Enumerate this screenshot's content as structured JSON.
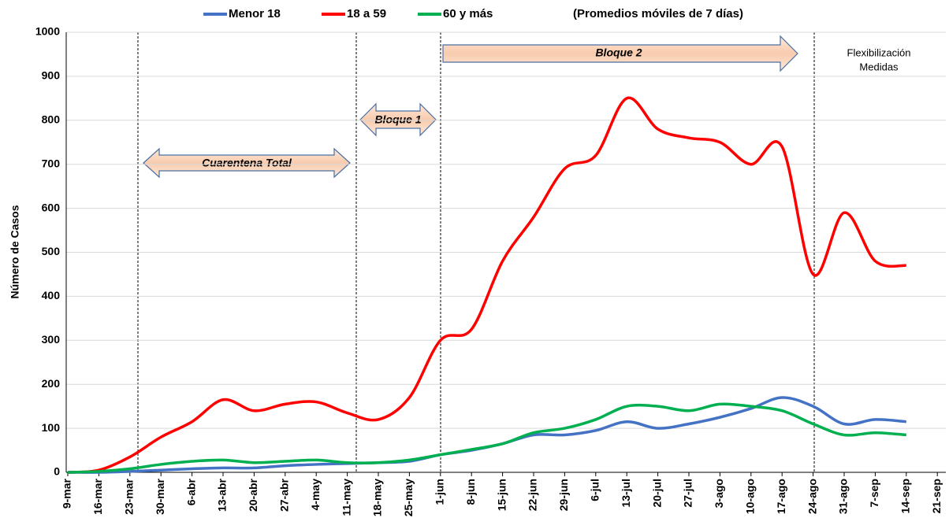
{
  "chart_data": {
    "type": "line",
    "subtitle": "(Promedios móviles de 7 días)",
    "y_label": "Número de Casos",
    "annotations": {
      "quarantine": "Cuarentena Total",
      "block1": "Bloque 1",
      "block2": "Bloque 2",
      "flex": [
        "Flexibilización",
        "Medidas"
      ]
    },
    "categories": [
      "9-mar",
      "16-mar",
      "23-mar",
      "30-mar",
      "6-abr",
      "13-abr",
      "20-abr",
      "27-abr",
      "4-may",
      "11-may",
      "18-may",
      "25-may",
      "1-jun",
      "8-jun",
      "15-jun",
      "22-jun",
      "29-jun",
      "6-jul",
      "13-jul",
      "20-jul",
      "27-jul",
      "3-ago",
      "10-ago",
      "17-ago",
      "24-ago",
      "31-ago",
      "7-sep",
      "14-sep",
      "21-sep"
    ],
    "series": [
      {
        "name": "Menor 18",
        "color": "#4472c4",
        "values": [
          0,
          0,
          2,
          5,
          8,
          10,
          10,
          15,
          18,
          20,
          22,
          25,
          40,
          50,
          65,
          85,
          85,
          95,
          115,
          100,
          110,
          125,
          145,
          170,
          150,
          110,
          120,
          115,
          null
        ]
      },
      {
        "name": "18 a 59",
        "color": "#ff0000",
        "values": [
          0,
          5,
          35,
          80,
          115,
          165,
          140,
          155,
          160,
          135,
          120,
          170,
          300,
          325,
          480,
          580,
          690,
          720,
          850,
          780,
          760,
          750,
          700,
          740,
          450,
          590,
          480,
          470,
          null
        ]
      },
      {
        "name": "60 y más",
        "color": "#00b050",
        "values": [
          0,
          2,
          8,
          18,
          25,
          28,
          22,
          25,
          28,
          22,
          22,
          28,
          40,
          52,
          65,
          90,
          100,
          120,
          150,
          150,
          140,
          155,
          150,
          140,
          110,
          85,
          90,
          85,
          null
        ]
      }
    ],
    "ylim": [
      0,
      1000
    ],
    "yticks": [
      0,
      100,
      200,
      300,
      400,
      500,
      600,
      700,
      800,
      900,
      1000
    ],
    "grid": true
  }
}
